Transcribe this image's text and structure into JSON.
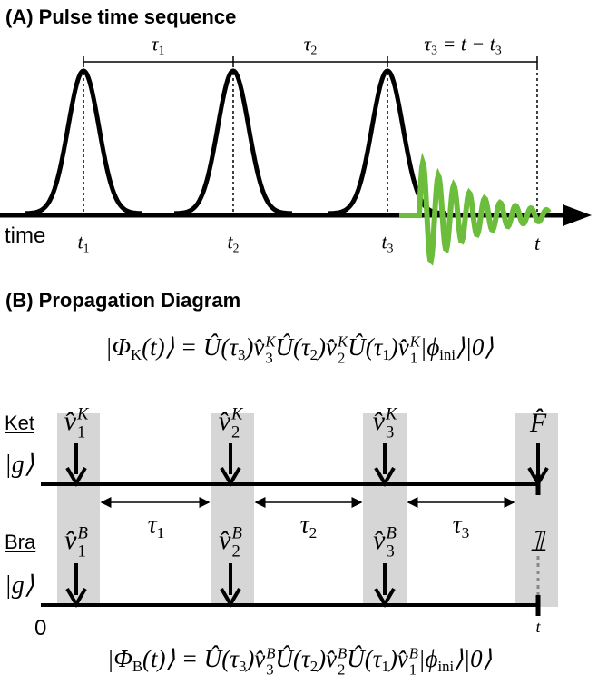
{
  "panel_a": {
    "title": "(A) Pulse time sequence",
    "intervals": [
      [
        {
          "text": "τ",
          "sub": "1"
        }
      ],
      [
        {
          "text": "τ",
          "sub": "2"
        }
      ],
      [
        {
          "text": "τ",
          "sub": "3"
        },
        {
          "text": " = t − t",
          "sub": "3"
        }
      ]
    ],
    "axis_label": "time",
    "times": [
      [
        {
          "text": "t",
          "sub": "1"
        }
      ],
      [
        {
          "text": "t",
          "sub": "2"
        }
      ],
      [
        {
          "text": "t",
          "sub": "3"
        }
      ],
      [
        {
          "text": "t"
        }
      ]
    ]
  },
  "panel_b": {
    "title": "(B) Propagation Diagram",
    "ket_equation": [
      {
        "text": "|Φ",
        "sub": "K"
      },
      {
        "text": "(t)⟩ = Û(τ",
        "sub": "3"
      },
      {
        "text": ")v̂",
        "sub": "3",
        "sup": "K"
      },
      {
        "text": "Û(τ",
        "sub": "2"
      },
      {
        "text": ")v̂",
        "sub": "2",
        "sup": "K"
      },
      {
        "text": "Û(τ",
        "sub": "1"
      },
      {
        "text": ")v̂",
        "sub": "1",
        "sup": "K"
      },
      {
        "text": "|ϕ",
        "sub": "ini"
      },
      {
        "text": "⟩|0⟩"
      }
    ],
    "bra_equation": [
      {
        "text": "|Φ",
        "sub": "B"
      },
      {
        "text": "(t)⟩ = Û(τ",
        "sub": "3"
      },
      {
        "text": ")v̂",
        "sub": "3",
        "sup": "B"
      },
      {
        "text": "Û(τ",
        "sub": "2"
      },
      {
        "text": ")v̂",
        "sub": "2",
        "sup": "B"
      },
      {
        "text": "Û(τ",
        "sub": "1"
      },
      {
        "text": ")v̂",
        "sub": "1",
        "sup": "B"
      },
      {
        "text": "|ϕ",
        "sub": "ini"
      },
      {
        "text": "⟩|0⟩"
      }
    ],
    "ket_label": "Ket",
    "ket_state": [
      {
        "text": "|g⟩"
      }
    ],
    "bra_label": "Bra",
    "bra_state": [
      {
        "text": "|g⟩"
      }
    ],
    "ket_operators": [
      [
        {
          "text": "v̂",
          "sub": "1",
          "sup": "K"
        }
      ],
      [
        {
          "text": "v̂",
          "sub": "2",
          "sup": "K"
        }
      ],
      [
        {
          "text": "v̂",
          "sub": "3",
          "sup": "K"
        }
      ],
      [
        {
          "text": "F̂"
        }
      ]
    ],
    "bra_operators": [
      [
        {
          "text": "v̂",
          "sub": "1",
          "sup": "B"
        }
      ],
      [
        {
          "text": "v̂",
          "sub": "2",
          "sup": "B"
        }
      ],
      [
        {
          "text": "v̂",
          "sub": "3",
          "sup": "B"
        }
      ],
      [
        {
          "text": "𝟙"
        }
      ]
    ],
    "intervals": [
      [
        {
          "text": "τ",
          "sub": "1"
        }
      ],
      [
        {
          "text": "τ",
          "sub": "2"
        }
      ],
      [
        {
          "text": "τ",
          "sub": "3"
        }
      ]
    ],
    "origin": "0",
    "end": [
      {
        "text": "t"
      }
    ]
  }
}
